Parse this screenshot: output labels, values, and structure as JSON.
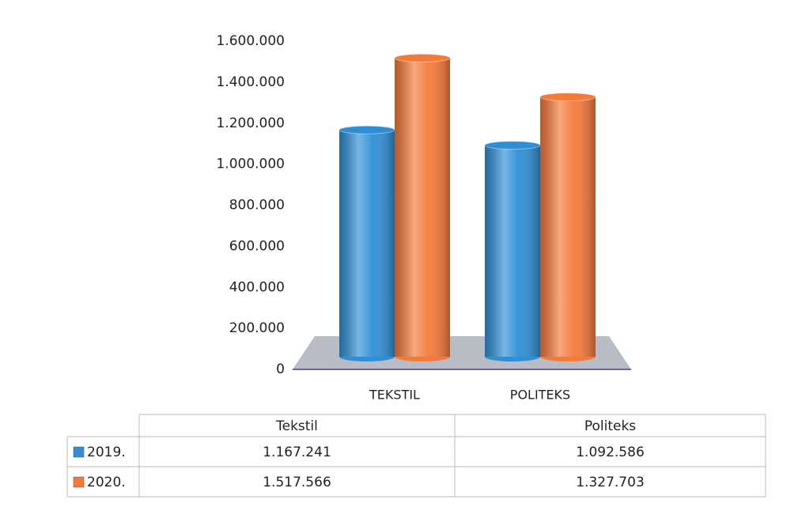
{
  "chart_data": {
    "type": "bar",
    "categories": [
      "TEKSTIL",
      "POLITEKS"
    ],
    "series": [
      {
        "name": "2019.",
        "color": "#2e8fd6",
        "values": [
          1167241,
          1092586
        ],
        "value_labels": [
          "1.167.241",
          "1.092.586"
        ]
      },
      {
        "name": "2020.",
        "color": "#f47a3a",
        "values": [
          1517566,
          1327703
        ],
        "value_labels": [
          "1.517.566",
          "1.327.703"
        ]
      }
    ],
    "table_columns": [
      "Tekstil",
      "Politeks"
    ],
    "ylim": [
      0,
      1600000
    ],
    "yticks": [
      0,
      {
        "value": 200000,
        "label": "200.000"
      },
      {
        "value": 400000,
        "label": "400.000"
      },
      {
        "value": 600000,
        "label": "600.000"
      },
      {
        "value": 800000,
        "label": "800.000"
      },
      {
        "value": 1000000,
        "label": "1.000.000"
      },
      {
        "value": 1200000,
        "label": "1.200.000"
      },
      {
        "value": 1400000,
        "label": "1.400.000"
      },
      {
        "value": 1600000,
        "label": "1.600.000"
      }
    ]
  }
}
